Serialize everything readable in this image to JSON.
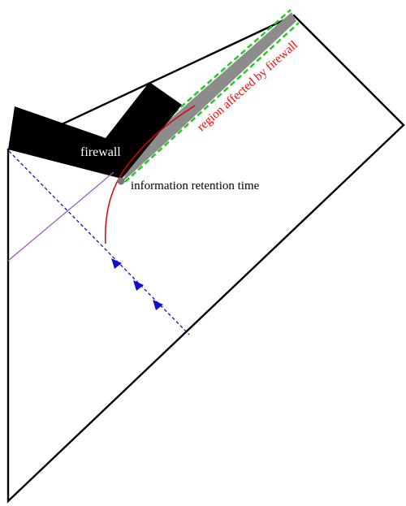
{
  "labels": {
    "firewall": "firewall",
    "retention": "information retention time",
    "region": "region affected by firewall"
  },
  "colors": {
    "outline": "#000000",
    "firewall_fill": "#000000",
    "region_fill": "#8c8c8c",
    "region_border": "#22cc22",
    "curve": "#dd0000",
    "light_ray": "#1010cc",
    "diagonal": "#a050c0",
    "firewall_text": "#ffffff",
    "retention_text": "#000000",
    "region_text": "#ff0000"
  }
}
